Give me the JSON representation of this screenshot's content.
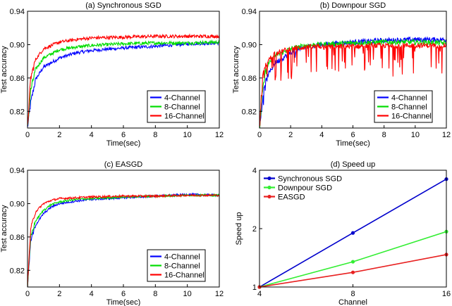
{
  "chart_data": [
    {
      "type": "line",
      "title": "(a) Synchronous SGD",
      "xlabel": "Time(sec)",
      "ylabel": "Test accuracy",
      "xlim": [
        0,
        12
      ],
      "ylim": [
        0.8,
        0.94
      ],
      "xticks": [
        "0",
        "2",
        "4",
        "6",
        "8",
        "10",
        "12"
      ],
      "yticks": [
        "0.82",
        "0.86",
        "0.90",
        "0.94"
      ],
      "legend_position": "bottom-right",
      "grid": false,
      "series": [
        {
          "name": "4-Channel",
          "color": "#0000ff",
          "x": [
            0.0,
            0.2,
            0.5,
            1.0,
            2.0,
            3.0,
            4.0,
            6.0,
            8.0,
            10.0,
            12.0
          ],
          "y": [
            0.8,
            0.83,
            0.858,
            0.873,
            0.884,
            0.89,
            0.893,
            0.896,
            0.898,
            0.901,
            0.902
          ]
        },
        {
          "name": "8-Channel",
          "color": "#00dd00",
          "x": [
            0.0,
            0.2,
            0.5,
            1.0,
            2.0,
            3.0,
            4.0,
            6.0,
            8.0,
            10.0,
            12.0
          ],
          "y": [
            0.8,
            0.845,
            0.87,
            0.884,
            0.894,
            0.897,
            0.899,
            0.901,
            0.902,
            0.902,
            0.903
          ]
        },
        {
          "name": "16-Channel",
          "color": "#ff0000",
          "x": [
            0.0,
            0.2,
            0.5,
            1.0,
            2.0,
            3.0,
            4.0,
            6.0,
            8.0,
            10.0,
            12.0
          ],
          "y": [
            0.8,
            0.86,
            0.882,
            0.895,
            0.903,
            0.906,
            0.908,
            0.909,
            0.91,
            0.91,
            0.91
          ]
        }
      ],
      "noise": 0.002
    },
    {
      "type": "line",
      "title": "(b) Downpour SGD",
      "xlabel": "Time(sec)",
      "ylabel": "Test accuracy",
      "xlim": [
        0,
        12
      ],
      "ylim": [
        0.8,
        0.94
      ],
      "xticks": [
        "0",
        "2",
        "4",
        "6",
        "8",
        "10",
        "12"
      ],
      "yticks": [
        "0.82",
        "0.86",
        "0.90",
        "0.94"
      ],
      "legend_position": "bottom-right",
      "grid": false,
      "series": [
        {
          "name": "4-Channel",
          "color": "#0000ff",
          "x": [
            0.0,
            0.2,
            0.5,
            1.0,
            2.0,
            3.0,
            4.0,
            6.0,
            8.0,
            10.0,
            12.0
          ],
          "y": [
            0.8,
            0.835,
            0.862,
            0.878,
            0.89,
            0.897,
            0.9,
            0.903,
            0.905,
            0.906,
            0.906
          ]
        },
        {
          "name": "8-Channel",
          "color": "#00dd00",
          "x": [
            0.0,
            0.2,
            0.5,
            1.0,
            2.0,
            3.0,
            4.0,
            6.0,
            8.0,
            10.0,
            12.0
          ],
          "y": [
            0.8,
            0.85,
            0.874,
            0.887,
            0.895,
            0.899,
            0.9,
            0.902,
            0.903,
            0.903,
            0.902
          ]
        },
        {
          "name": "16-Channel",
          "color": "#ff0000",
          "x": [
            0.0,
            0.2,
            0.5,
            1.0,
            2.0,
            3.0,
            4.0,
            6.0,
            8.0,
            10.0,
            12.0
          ],
          "y": [
            0.8,
            0.86,
            0.88,
            0.89,
            0.895,
            0.897,
            0.898,
            0.898,
            0.899,
            0.899,
            0.899
          ]
        }
      ],
      "noise": 0.003,
      "spikes": 0.035
    },
    {
      "type": "line",
      "title": "(c) EASGD",
      "xlabel": "Time(sec)",
      "ylabel": "Test accuracy",
      "xlim": [
        0,
        12
      ],
      "ylim": [
        0.8,
        0.94
      ],
      "xticks": [
        "0",
        "2",
        "4",
        "6",
        "8",
        "10",
        "12"
      ],
      "yticks": [
        "0.82",
        "0.86",
        "0.90",
        "0.94"
      ],
      "legend_position": "bottom-right",
      "grid": false,
      "series": [
        {
          "name": "4-Channel",
          "color": "#0000ff",
          "x": [
            0.0,
            0.2,
            0.5,
            1.0,
            1.5,
            2.0,
            3.0,
            4.0,
            6.0,
            8.0,
            10.0,
            12.0
          ],
          "y": [
            0.8,
            0.855,
            0.874,
            0.888,
            0.896,
            0.9,
            0.903,
            0.905,
            0.907,
            0.909,
            0.911,
            0.91
          ]
        },
        {
          "name": "8-Channel",
          "color": "#00dd00",
          "x": [
            0.0,
            0.2,
            0.5,
            1.0,
            1.5,
            2.0,
            3.0,
            4.0,
            6.0,
            8.0,
            10.0,
            12.0
          ],
          "y": [
            0.8,
            0.86,
            0.879,
            0.892,
            0.899,
            0.902,
            0.905,
            0.906,
            0.908,
            0.909,
            0.91,
            0.91
          ]
        },
        {
          "name": "16-Channel",
          "color": "#ff0000",
          "x": [
            0.0,
            0.2,
            0.5,
            1.0,
            1.5,
            2.0,
            3.0,
            4.0,
            6.0,
            8.0,
            10.0,
            12.0
          ],
          "y": [
            0.8,
            0.87,
            0.89,
            0.9,
            0.904,
            0.906,
            0.907,
            0.908,
            0.909,
            0.909,
            0.91,
            0.91
          ]
        }
      ],
      "noise": 0.0012
    },
    {
      "type": "line",
      "title": "(d) Speed up",
      "xlabel": "Channel",
      "ylabel": "Speed up",
      "xscale": "log2",
      "yscale": "log2",
      "xlim": [
        4,
        16
      ],
      "ylim": [
        1,
        4
      ],
      "xticks": [
        "4",
        "8",
        "16"
      ],
      "yticks": [
        "1",
        "2",
        "4"
      ],
      "legend_position": "top-left",
      "grid": false,
      "markers": true,
      "series": [
        {
          "name": "Synchronous SGD",
          "color": "#0000cc",
          "x": [
            4,
            8,
            16
          ],
          "y": [
            1.0,
            1.9,
            3.6
          ]
        },
        {
          "name": "Downpour SGD",
          "color": "#33ee33",
          "x": [
            4,
            8,
            16
          ],
          "y": [
            1.0,
            1.35,
            1.93
          ]
        },
        {
          "name": "EASGD",
          "color": "#e82020",
          "x": [
            4,
            8,
            16
          ],
          "y": [
            1.0,
            1.19,
            1.47
          ]
        }
      ]
    }
  ]
}
